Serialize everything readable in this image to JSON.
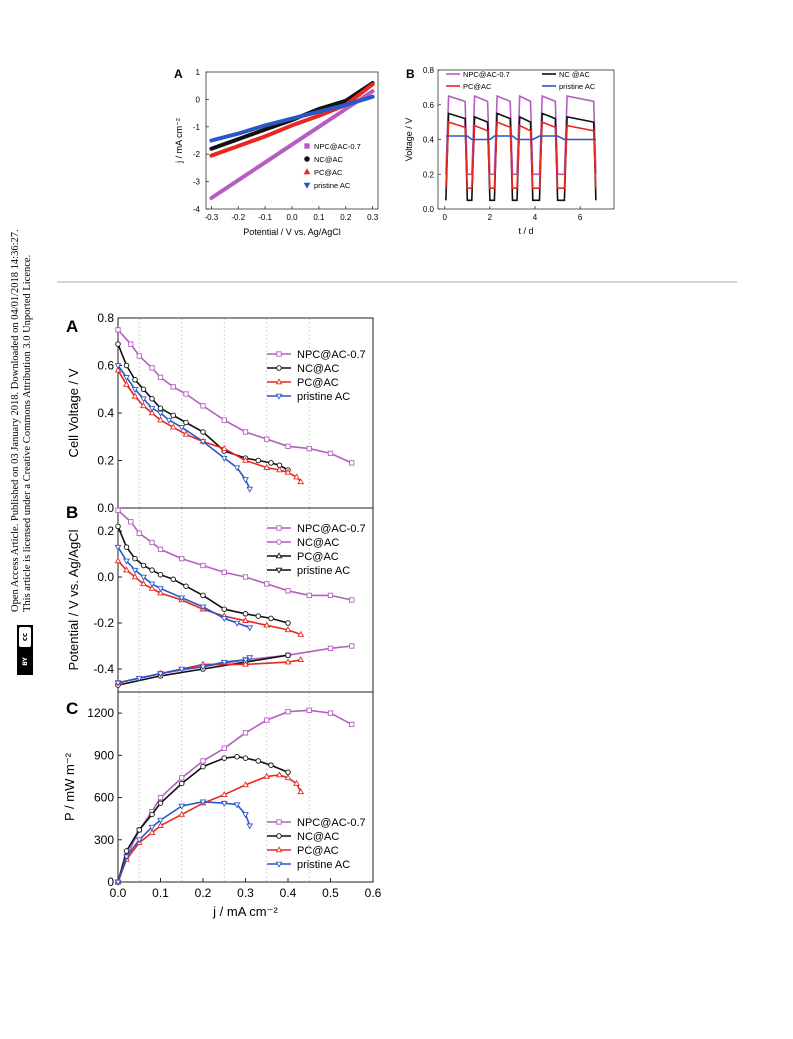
{
  "sidebar": {
    "line1": "Open Access Article. Published on 03 January 2018. Downloaded on 04/01/2018 14:36:27.",
    "line2": "This article is licensed under a Creative Commons Attribution 3.0 Unported Licence.",
    "badge_cc": "cc",
    "badge_by": "BY"
  },
  "colors": {
    "npc": "#b45fc0",
    "nc": "#111111",
    "pc": "#e8281f",
    "pristine": "#2a56c8"
  },
  "chart_data": [
    {
      "id": "top-A",
      "type": "scatter",
      "panel_label": "A",
      "xlabel": "Potential / V vs. Ag/AgCl",
      "ylabel": "j / mA cm⁻²",
      "xlim": [
        -0.32,
        0.32
      ],
      "ylim": [
        -4,
        1
      ],
      "xticks": [
        "-0.3",
        "-0.2",
        "-0.1",
        "0.0",
        "0.1",
        "0.2",
        "0.3"
      ],
      "yticks": [
        "-4",
        "-3",
        "-2",
        "-1",
        "0",
        "1"
      ],
      "legend_position": "right",
      "series": [
        {
          "name": "NPC@AC-0.7",
          "color": "#b45fc0",
          "x": [
            -0.3,
            -0.2,
            -0.1,
            0.0,
            0.1,
            0.2,
            0.3
          ],
          "y": [
            -3.6,
            -2.95,
            -2.3,
            -1.65,
            -1.0,
            -0.35,
            0.3
          ]
        },
        {
          "name": "NC@AC",
          "color": "#111111",
          "x": [
            -0.3,
            -0.2,
            -0.1,
            0.0,
            0.1,
            0.2,
            0.3
          ],
          "y": [
            -1.8,
            -1.45,
            -1.1,
            -0.75,
            -0.35,
            -0.05,
            0.6
          ]
        },
        {
          "name": "PC@AC",
          "color": "#e8281f",
          "x": [
            -0.3,
            -0.2,
            -0.1,
            0.0,
            0.1,
            0.2,
            0.3
          ],
          "y": [
            -2.05,
            -1.7,
            -1.35,
            -0.95,
            -0.6,
            -0.2,
            0.55
          ]
        },
        {
          "name": "pristine AC",
          "color": "#2a56c8",
          "x": [
            -0.3,
            -0.2,
            -0.1,
            0.0,
            0.1,
            0.2,
            0.3
          ],
          "y": [
            -1.5,
            -1.25,
            -0.95,
            -0.7,
            -0.45,
            -0.2,
            0.1
          ]
        }
      ]
    },
    {
      "id": "top-B",
      "type": "line",
      "panel_label": "B",
      "xlabel": "t / d",
      "ylabel": "Voltage / V",
      "xlim": [
        -0.3,
        7.5
      ],
      "ylim": [
        0.0,
        0.8
      ],
      "xticks": [
        "0",
        "2",
        "4",
        "6"
      ],
      "yticks": [
        "0.0",
        "0.2",
        "0.4",
        "0.6",
        "0.8"
      ],
      "legend_position": "top",
      "series": [
        {
          "name": "NPC@AC-0.7",
          "color": "#b45fc0",
          "cycle_high": 0.65,
          "cycle_low": 0.2
        },
        {
          "name": "NC @AC",
          "color": "#111111",
          "cycle_high": 0.55,
          "cycle_low": 0.05
        },
        {
          "name": "PC@AC",
          "color": "#e8281f",
          "cycle_high": 0.5,
          "cycle_low": 0.12
        },
        {
          "name": "pristine AC",
          "color": "#2a56c8",
          "cycle_high": 0.42,
          "cycle_low": 0.42
        }
      ]
    },
    {
      "id": "bottom-A",
      "type": "line",
      "panel_label": "A",
      "ylabel": "Cell Voltage / V",
      "xlim": [
        0.0,
        0.6
      ],
      "ylim": [
        0.0,
        0.8
      ],
      "yticks": [
        "0.0",
        "0.2",
        "0.4",
        "0.6",
        "0.8"
      ],
      "legend_position": "top-right",
      "series": [
        {
          "name": "NPC@AC-0.7",
          "color": "#b45fc0",
          "x": [
            0.0,
            0.03,
            0.05,
            0.08,
            0.1,
            0.13,
            0.16,
            0.2,
            0.25,
            0.3,
            0.35,
            0.4,
            0.45,
            0.5,
            0.55
          ],
          "y": [
            0.75,
            0.69,
            0.64,
            0.59,
            0.55,
            0.51,
            0.48,
            0.43,
            0.37,
            0.32,
            0.29,
            0.26,
            0.25,
            0.23,
            0.19
          ]
        },
        {
          "name": "NC@AC",
          "color": "#111111",
          "x": [
            0.0,
            0.02,
            0.04,
            0.06,
            0.08,
            0.1,
            0.13,
            0.16,
            0.2,
            0.25,
            0.3,
            0.33,
            0.36,
            0.38,
            0.4
          ],
          "y": [
            0.69,
            0.6,
            0.54,
            0.5,
            0.46,
            0.42,
            0.39,
            0.36,
            0.32,
            0.24,
            0.21,
            0.2,
            0.19,
            0.18,
            0.16
          ]
        },
        {
          "name": "PC@AC",
          "color": "#e8281f",
          "x": [
            0.0,
            0.02,
            0.04,
            0.06,
            0.08,
            0.1,
            0.13,
            0.16,
            0.2,
            0.25,
            0.3,
            0.35,
            0.38,
            0.4,
            0.42,
            0.43
          ],
          "y": [
            0.58,
            0.52,
            0.47,
            0.43,
            0.4,
            0.37,
            0.34,
            0.31,
            0.28,
            0.25,
            0.2,
            0.17,
            0.16,
            0.15,
            0.13,
            0.11
          ]
        },
        {
          "name": "pristine AC",
          "color": "#2a56c8",
          "x": [
            0.0,
            0.02,
            0.04,
            0.06,
            0.08,
            0.1,
            0.12,
            0.15,
            0.2,
            0.25,
            0.28,
            0.3,
            0.31
          ],
          "y": [
            0.6,
            0.55,
            0.5,
            0.46,
            0.42,
            0.4,
            0.37,
            0.34,
            0.28,
            0.21,
            0.17,
            0.12,
            0.08
          ]
        }
      ]
    },
    {
      "id": "bottom-B",
      "type": "line",
      "panel_label": "B",
      "ylabel": "Potential / V vs. Ag/AgCl",
      "xlim": [
        0.0,
        0.6
      ],
      "ylim": [
        -0.5,
        0.3
      ],
      "yticks": [
        "-0.4",
        "-0.2",
        "0.0",
        "0.2"
      ],
      "legend_position": "top-right",
      "series": [
        {
          "name": "NPC@AC-0.7",
          "color": "#b45fc0",
          "part": "cathode",
          "x": [
            0.0,
            0.03,
            0.05,
            0.08,
            0.1,
            0.15,
            0.2,
            0.25,
            0.3,
            0.35,
            0.4,
            0.45,
            0.5,
            0.55
          ],
          "y": [
            0.29,
            0.24,
            0.19,
            0.15,
            0.12,
            0.08,
            0.05,
            0.02,
            0.0,
            -0.03,
            -0.06,
            -0.08,
            -0.08,
            -0.1
          ]
        },
        {
          "name": "NC@AC",
          "color": "#b45fc0",
          "part": "anode",
          "x": [
            0.0,
            0.1,
            0.2,
            0.3,
            0.4,
            0.5,
            0.55
          ],
          "y": [
            -0.46,
            -0.42,
            -0.39,
            -0.36,
            -0.34,
            -0.31,
            -0.3
          ]
        },
        {
          "name": "PC@AC",
          "color": "#111111",
          "part": "cathode",
          "x": [
            0.0,
            0.02,
            0.04,
            0.06,
            0.08,
            0.1,
            0.13,
            0.16,
            0.2,
            0.25,
            0.3,
            0.33,
            0.36,
            0.4
          ],
          "y": [
            0.22,
            0.13,
            0.08,
            0.05,
            0.03,
            0.01,
            -0.01,
            -0.04,
            -0.08,
            -0.14,
            -0.16,
            -0.17,
            -0.18,
            -0.2
          ]
        },
        {
          "name": "pristine AC",
          "color": "#111111",
          "part": "anode",
          "x": [
            0.0,
            0.1,
            0.2,
            0.3,
            0.4
          ],
          "y": [
            -0.47,
            -0.43,
            -0.4,
            -0.37,
            -0.34
          ]
        },
        {
          "name": "",
          "color": "#e8281f",
          "part": "cathode",
          "x": [
            0.0,
            0.02,
            0.04,
            0.06,
            0.08,
            0.1,
            0.15,
            0.2,
            0.25,
            0.3,
            0.35,
            0.4,
            0.43
          ],
          "y": [
            0.07,
            0.03,
            0.0,
            -0.03,
            -0.05,
            -0.07,
            -0.1,
            -0.14,
            -0.17,
            -0.19,
            -0.21,
            -0.23,
            -0.25
          ]
        },
        {
          "name": "",
          "color": "#e8281f",
          "part": "anode",
          "x": [
            0.0,
            0.1,
            0.2,
            0.3,
            0.4,
            0.43
          ],
          "y": [
            -0.46,
            -0.42,
            -0.38,
            -0.38,
            -0.37,
            -0.36
          ]
        },
        {
          "name": "",
          "color": "#2a56c8",
          "part": "cathode",
          "x": [
            0.0,
            0.02,
            0.04,
            0.06,
            0.08,
            0.1,
            0.15,
            0.2,
            0.25,
            0.28,
            0.31
          ],
          "y": [
            0.13,
            0.07,
            0.03,
            0.0,
            -0.03,
            -0.05,
            -0.09,
            -0.13,
            -0.18,
            -0.2,
            -0.22
          ]
        },
        {
          "name": "",
          "color": "#2a56c8",
          "part": "anode",
          "x": [
            0.0,
            0.05,
            0.1,
            0.15,
            0.2,
            0.25,
            0.3,
            0.31
          ],
          "y": [
            -0.46,
            -0.44,
            -0.42,
            -0.4,
            -0.39,
            -0.37,
            -0.36,
            -0.35
          ]
        }
      ]
    },
    {
      "id": "bottom-C",
      "type": "line",
      "panel_label": "C",
      "xlabel": "j / mA cm⁻²",
      "ylabel": "P / mW m⁻²",
      "xlim": [
        0.0,
        0.6
      ],
      "ylim": [
        0,
        1350
      ],
      "xticks": [
        "0.0",
        "0.1",
        "0.2",
        "0.3",
        "0.4",
        "0.5",
        "0.6"
      ],
      "yticks": [
        "0",
        "300",
        "600",
        "900",
        "1200"
      ],
      "legend_position": "bottom-right",
      "series": [
        {
          "name": "NPC@AC-0.7",
          "color": "#b45fc0",
          "x": [
            0.0,
            0.02,
            0.05,
            0.08,
            0.1,
            0.15,
            0.2,
            0.25,
            0.3,
            0.35,
            0.4,
            0.45,
            0.5,
            0.55
          ],
          "y": [
            0,
            180,
            370,
            500,
            600,
            740,
            860,
            950,
            1060,
            1150,
            1210,
            1220,
            1200,
            1120
          ]
        },
        {
          "name": "NC@AC",
          "color": "#111111",
          "x": [
            0.0,
            0.02,
            0.05,
            0.08,
            0.1,
            0.15,
            0.2,
            0.25,
            0.28,
            0.3,
            0.33,
            0.36,
            0.4
          ],
          "y": [
            0,
            220,
            370,
            480,
            560,
            700,
            820,
            880,
            890,
            880,
            860,
            830,
            780
          ]
        },
        {
          "name": "PC@AC",
          "color": "#e8281f",
          "x": [
            0.0,
            0.02,
            0.05,
            0.08,
            0.1,
            0.15,
            0.2,
            0.25,
            0.3,
            0.35,
            0.38,
            0.4,
            0.42,
            0.43
          ],
          "y": [
            0,
            160,
            280,
            350,
            400,
            480,
            560,
            620,
            690,
            750,
            760,
            740,
            700,
            640
          ]
        },
        {
          "name": "pristine AC",
          "color": "#2a56c8",
          "x": [
            0.0,
            0.02,
            0.05,
            0.08,
            0.1,
            0.15,
            0.2,
            0.25,
            0.28,
            0.3,
            0.31
          ],
          "y": [
            0,
            180,
            300,
            390,
            440,
            540,
            570,
            560,
            550,
            480,
            400
          ]
        }
      ]
    }
  ]
}
